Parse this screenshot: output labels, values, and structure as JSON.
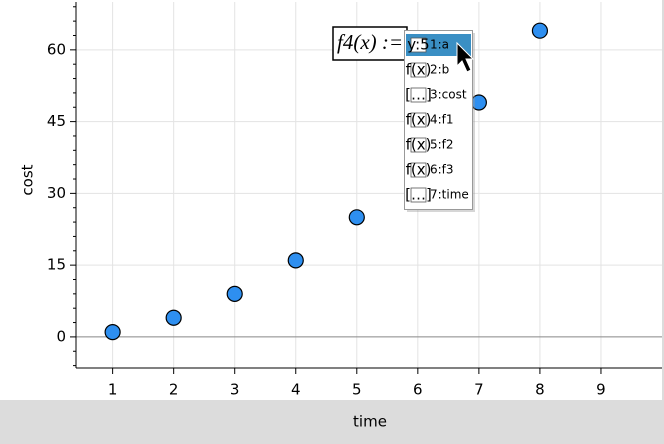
{
  "chart_data": {
    "type": "scatter",
    "x_label": "time",
    "y_label": "cost",
    "x": [
      1,
      2,
      3,
      4,
      5,
      7,
      8
    ],
    "values": [
      1,
      4,
      9,
      16,
      25,
      49,
      64
    ],
    "color": "#2e8ff0",
    "xlim": [
      0.4,
      10
    ],
    "ylim": [
      -6.5,
      70
    ],
    "xticks": [
      1,
      2,
      3,
      4,
      5,
      6,
      7,
      8,
      9
    ],
    "yticks": [
      0,
      15,
      30,
      45,
      60
    ],
    "y_minor_ticks": [
      -6,
      -3,
      3,
      6,
      9,
      12,
      18,
      21,
      24,
      27,
      33,
      36,
      39,
      42,
      48,
      51,
      54,
      57,
      63,
      66,
      69
    ],
    "grid": true
  },
  "entry": "f4(x) :=",
  "menu": {
    "items": [
      "1:a",
      "2:b",
      "3:cost",
      "4:f1",
      "5:f2",
      "6:f3",
      "7:time"
    ],
    "selected": 0
  }
}
